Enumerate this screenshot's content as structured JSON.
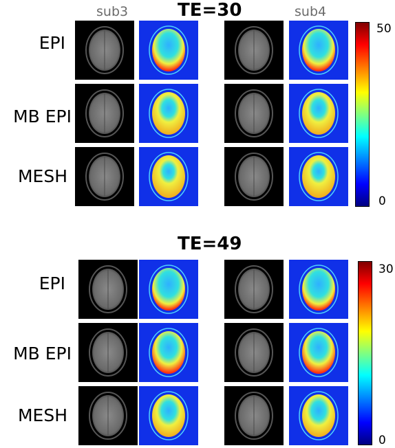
{
  "sections": [
    {
      "title": "TE=30",
      "columns": [
        "sub3",
        "sub4"
      ],
      "rows": [
        "EPI",
        "MB EPI",
        "MESH"
      ],
      "colorbar": {
        "max_label": "50",
        "min_label": "0",
        "range": [
          0,
          50
        ]
      },
      "map_levels": [
        0.85,
        0.6,
        0.5
      ]
    },
    {
      "title": "TE=49",
      "columns": [],
      "rows": [
        "EPI",
        "MB EPI",
        "MESH"
      ],
      "colorbar": {
        "max_label": "30",
        "min_label": "0",
        "range": [
          0,
          30
        ]
      },
      "map_levels": [
        0.9,
        0.75,
        0.65
      ]
    }
  ],
  "colors": {
    "map_background": "#1030e8",
    "colormap": "jet"
  }
}
